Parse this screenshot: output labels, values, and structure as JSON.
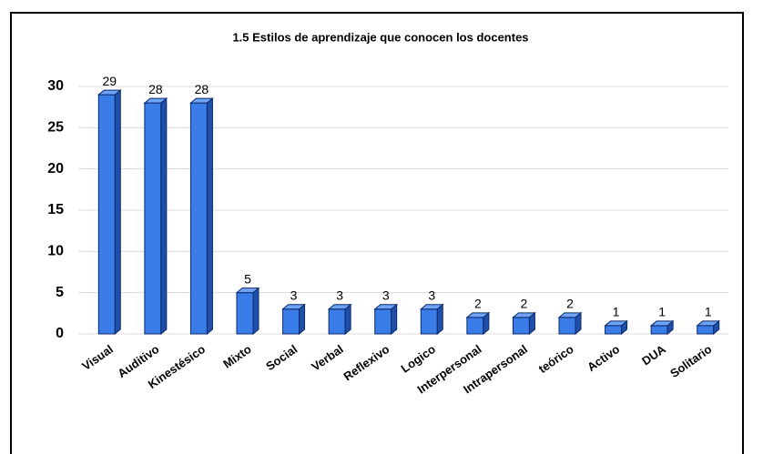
{
  "chart_data": {
    "type": "bar3d",
    "title": "1.5  Estilos de aprendizaje que conocen  los docentes",
    "categories": [
      "Visual",
      "Auditivo",
      "Kinestésico",
      "Mixto",
      "Social",
      "Verbal",
      "Reflexivo",
      "Logico",
      "Interpersonal",
      "Intrapersonal",
      "teórico",
      "Activo",
      "DUA",
      "Solitario"
    ],
    "values": [
      29,
      28,
      28,
      5,
      3,
      3,
      3,
      3,
      2,
      2,
      2,
      1,
      1,
      1
    ],
    "color": "#3a7de8",
    "ylim": [
      0,
      30
    ],
    "yticks": [
      0,
      5,
      10,
      15,
      20,
      25,
      30
    ],
    "grid": true
  }
}
